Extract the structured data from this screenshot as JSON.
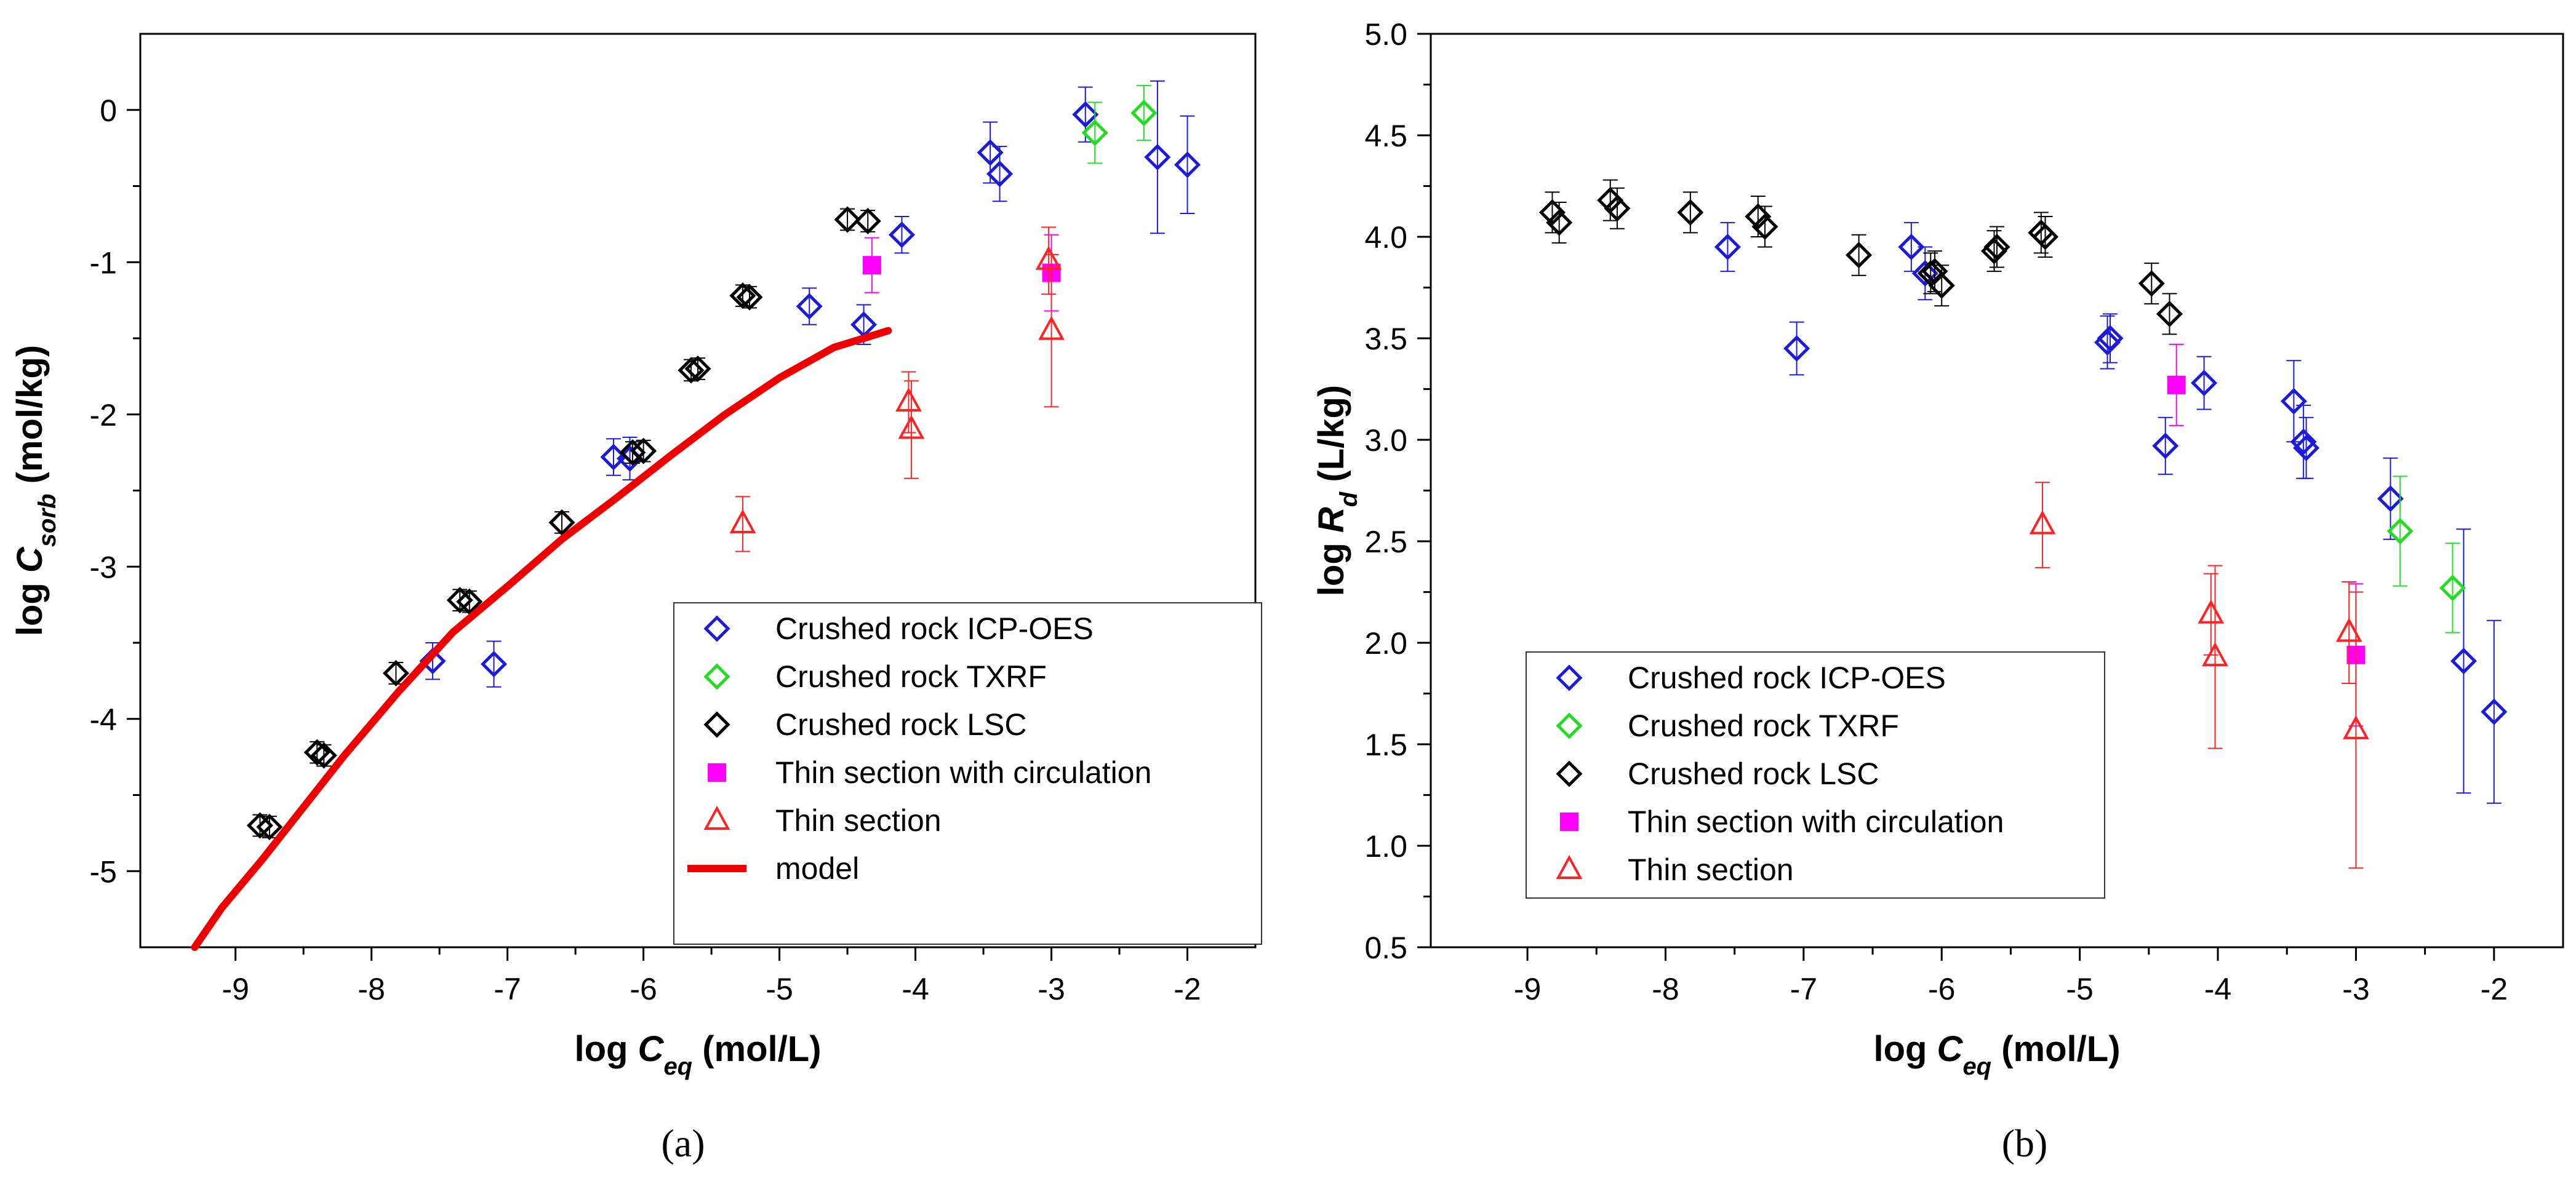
{
  "chart_data": [
    {
      "type": "scatter",
      "panel_label": "(a)",
      "xlabel": {
        "main": "log ",
        "var": "C",
        "sub": "eq",
        "units": " (mol/L)"
      },
      "ylabel": {
        "main": "log ",
        "var": "C",
        "sub": "sorb",
        "units": " (mol/kg)"
      },
      "xlim": [
        -9.7,
        -1.5
      ],
      "ylim": [
        -5.5,
        0.5
      ],
      "xticks": [
        -9,
        -8,
        -7,
        -6,
        -5,
        -4,
        -3,
        -2
      ],
      "xtick_labels": [
        "-9",
        "-8",
        "-7",
        "-6",
        "-5",
        "-4",
        "-3",
        "-2"
      ],
      "yticks": [
        -5,
        -4,
        -3,
        -2,
        -1,
        0
      ],
      "ytick_labels": [
        "-5",
        "-4",
        "-3",
        "-2",
        "-1",
        "0"
      ],
      "legend_position": "bottom-right",
      "series": [
        {
          "name": "Crushed rock ICP-OES",
          "marker": "diamond",
          "color": "#1a1adc",
          "x": [
            -7.55,
            -7.1,
            -6.22,
            -6.1,
            -4.78,
            -4.38,
            -4.1,
            -3.45,
            -3.38,
            -2.75,
            -2.22,
            -2.0
          ],
          "y": [
            -3.62,
            -3.64,
            -2.28,
            -2.29,
            -1.29,
            -1.41,
            -0.82,
            -0.28,
            -0.42,
            -0.03,
            -0.31,
            -0.36
          ],
          "err": [
            0.12,
            0.15,
            0.12,
            0.14,
            0.12,
            0.13,
            0.12,
            0.2,
            0.18,
            0.18,
            0.5,
            0.32
          ]
        },
        {
          "name": "Crushed rock TXRF",
          "marker": "diamond",
          "color": "#22dd22",
          "x": [
            -2.68,
            -2.32
          ],
          "y": [
            -0.15,
            -0.02
          ],
          "err": [
            0.2,
            0.18
          ]
        },
        {
          "name": "Crushed rock LSC",
          "marker": "diamond",
          "color": "#000000",
          "x": [
            -8.82,
            -8.75,
            -8.4,
            -8.35,
            -7.82,
            -7.35,
            -7.28,
            -6.6,
            -6.08,
            -6.0,
            -5.65,
            -5.6,
            -5.27,
            -5.22,
            -4.5,
            -4.35
          ],
          "y": [
            -4.7,
            -4.71,
            -4.22,
            -4.24,
            -3.7,
            -3.22,
            -3.23,
            -2.71,
            -2.25,
            -2.24,
            -1.71,
            -1.7,
            -1.22,
            -1.23,
            -0.72,
            -0.73
          ],
          "err": [
            0.07,
            0.07,
            0.07,
            0.07,
            0.07,
            0.07,
            0.07,
            0.07,
            0.07,
            0.07,
            0.07,
            0.07,
            0.07,
            0.07,
            0.07,
            0.07
          ]
        },
        {
          "name": "Thin section with circulation",
          "marker": "square",
          "color": "#ff00ff",
          "x": [
            -4.32,
            -3.0
          ],
          "y": [
            -1.02,
            -1.07
          ],
          "err": [
            0.18,
            0.25
          ]
        },
        {
          "name": "Thin section",
          "marker": "triangle",
          "color": "#ff2222",
          "x": [
            -5.27,
            -4.05,
            -4.03,
            -3.02,
            -3.0
          ],
          "y": [
            -2.72,
            -1.92,
            -2.1,
            -0.99,
            -1.45
          ],
          "err": [
            0.18,
            0.2,
            0.32,
            0.22,
            0.5
          ]
        },
        {
          "name": "model",
          "marker": "line",
          "color": "#ee0000",
          "x": [
            -9.3,
            -9.1,
            -8.8,
            -8.5,
            -8.2,
            -7.8,
            -7.4,
            -7.0,
            -6.6,
            -6.2,
            -5.8,
            -5.4,
            -5.0,
            -4.6,
            -4.2
          ],
          "y": [
            -5.5,
            -5.24,
            -4.92,
            -4.58,
            -4.24,
            -3.82,
            -3.43,
            -3.13,
            -2.82,
            -2.55,
            -2.27,
            -2.0,
            -1.76,
            -1.56,
            -1.45
          ]
        }
      ]
    },
    {
      "type": "scatter",
      "panel_label": "(b)",
      "xlabel": {
        "main": "log ",
        "var": "C",
        "sub": "eq",
        "units": " (mol/L)"
      },
      "ylabel": {
        "main": "log ",
        "var": "R",
        "sub": "d",
        "units": " (L/kg)"
      },
      "xlim": [
        -9.7,
        -1.5
      ],
      "ylim": [
        0.5,
        5.0
      ],
      "xticks": [
        -9,
        -8,
        -7,
        -6,
        -5,
        -4,
        -3,
        -2
      ],
      "xtick_labels": [
        "-9",
        "-8",
        "-7",
        "-6",
        "-5",
        "-4",
        "-3",
        "-2"
      ],
      "yticks": [
        0.5,
        1.0,
        1.5,
        2.0,
        2.5,
        3.0,
        3.5,
        4.0,
        4.5,
        5.0
      ],
      "ytick_labels": [
        "0.5",
        "1.0",
        "1.5",
        "2.0",
        "2.5",
        "3.0",
        "3.5",
        "4.0",
        "4.5",
        "5.0"
      ],
      "legend_position": "bottom-left",
      "series": [
        {
          "name": "Crushed rock ICP-OES",
          "marker": "diamond",
          "color": "#1a1adc",
          "x": [
            -7.55,
            -7.05,
            -6.22,
            -6.12,
            -4.8,
            -4.78,
            -4.38,
            -4.1,
            -3.45,
            -3.38,
            -3.36,
            -2.75,
            -2.22,
            -2.0
          ],
          "y": [
            3.95,
            3.45,
            3.95,
            3.82,
            3.48,
            3.5,
            2.97,
            3.28,
            3.19,
            2.99,
            2.96,
            2.71,
            1.91,
            1.66
          ],
          "err": [
            0.12,
            0.13,
            0.12,
            0.13,
            0.13,
            0.12,
            0.14,
            0.13,
            0.2,
            0.18,
            0.15,
            0.2,
            0.65,
            0.45
          ]
        },
        {
          "name": "Crushed rock TXRF",
          "marker": "diamond",
          "color": "#22dd22",
          "x": [
            -2.68,
            -2.3
          ],
          "y": [
            2.55,
            2.27
          ],
          "err": [
            0.27,
            0.22
          ]
        },
        {
          "name": "Crushed rock LSC",
          "marker": "diamond",
          "color": "#000000",
          "x": [
            -8.82,
            -8.77,
            -8.4,
            -8.35,
            -7.82,
            -7.33,
            -7.28,
            -6.6,
            -6.08,
            -6.05,
            -6.0,
            -5.62,
            -5.6,
            -5.28,
            -5.25,
            -4.48,
            -4.35
          ],
          "y": [
            4.12,
            4.07,
            4.18,
            4.14,
            4.12,
            4.1,
            4.05,
            3.91,
            3.82,
            3.83,
            3.76,
            3.93,
            3.95,
            4.02,
            4.0,
            3.77,
            3.62
          ],
          "err": [
            0.1,
            0.1,
            0.1,
            0.1,
            0.1,
            0.1,
            0.1,
            0.1,
            0.1,
            0.1,
            0.1,
            0.1,
            0.1,
            0.1,
            0.1,
            0.1,
            0.1
          ]
        },
        {
          "name": "Thin section with circulation",
          "marker": "square",
          "color": "#ff00ff",
          "x": [
            -4.3,
            -3.0
          ],
          "y": [
            3.27,
            1.94
          ],
          "err": [
            0.2,
            0.35
          ]
        },
        {
          "name": "Thin section",
          "marker": "triangle",
          "color": "#ff2222",
          "x": [
            -5.27,
            -4.05,
            -4.02,
            -3.05,
            -3.0
          ],
          "y": [
            2.58,
            2.14,
            1.93,
            2.05,
            1.57
          ],
          "err": [
            0.21,
            0.2,
            0.45,
            0.25,
            0.68
          ]
        }
      ]
    }
  ]
}
